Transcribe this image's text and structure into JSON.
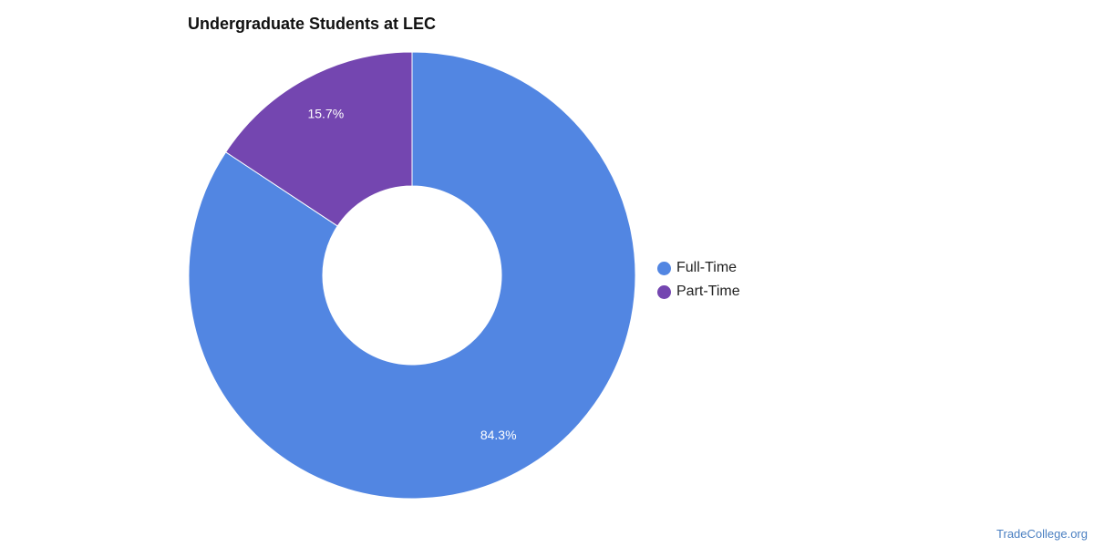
{
  "chart_data": {
    "type": "pie",
    "title": "Undergraduate Students at LEC",
    "categories": [
      "Full-Time",
      "Part-Time"
    ],
    "values": [
      84.3,
      15.7
    ],
    "labels": [
      "84.3%",
      "15.7%"
    ],
    "colors": [
      "#5286e2",
      "#7446b0"
    ],
    "legend_position": "right",
    "donut": true
  },
  "source": "TradeCollege.org"
}
